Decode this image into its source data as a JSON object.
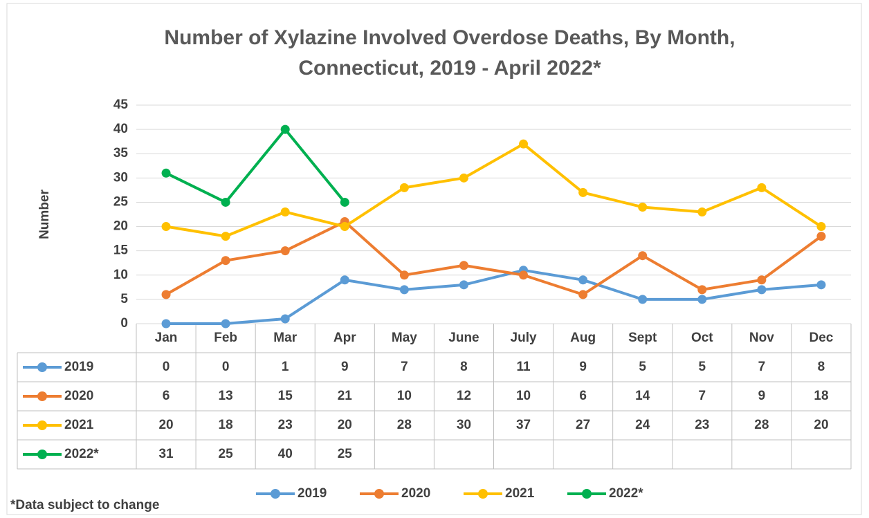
{
  "chart_data": {
    "type": "line",
    "title": [
      "Number of Xylazine Involved Overdose Deaths, By Month,",
      "Connecticut, 2019 - April 2022*"
    ],
    "y_label": "Number",
    "annotation": "*Data subject to change",
    "categories": [
      "Jan",
      "Feb",
      "Mar",
      "Apr",
      "May",
      "June",
      "July",
      "Aug",
      "Sept",
      "Oct",
      "Nov",
      "Dec"
    ],
    "series": [
      {
        "name": "2019",
        "color": "#5b9bd5",
        "values": [
          0,
          0,
          1,
          9,
          7,
          8,
          11,
          9,
          5,
          5,
          7,
          8
        ]
      },
      {
        "name": "2020",
        "color": "#ed7d31",
        "values": [
          6,
          13,
          15,
          21,
          10,
          12,
          10,
          6,
          14,
          7,
          9,
          18
        ]
      },
      {
        "name": "2021",
        "color": "#ffc000",
        "values": [
          20,
          18,
          23,
          20,
          28,
          30,
          37,
          27,
          24,
          23,
          28,
          20
        ]
      },
      {
        "name": "2022*",
        "color": "#00b050",
        "values": [
          31,
          25,
          40,
          25,
          null,
          null,
          null,
          null,
          null,
          null,
          null,
          null
        ]
      }
    ],
    "ylim": [
      0,
      45
    ],
    "yticks": [
      0,
      5,
      10,
      15,
      20,
      25,
      30,
      35,
      40,
      45
    ],
    "grid": true,
    "legend": "bottom",
    "data_table": true
  }
}
